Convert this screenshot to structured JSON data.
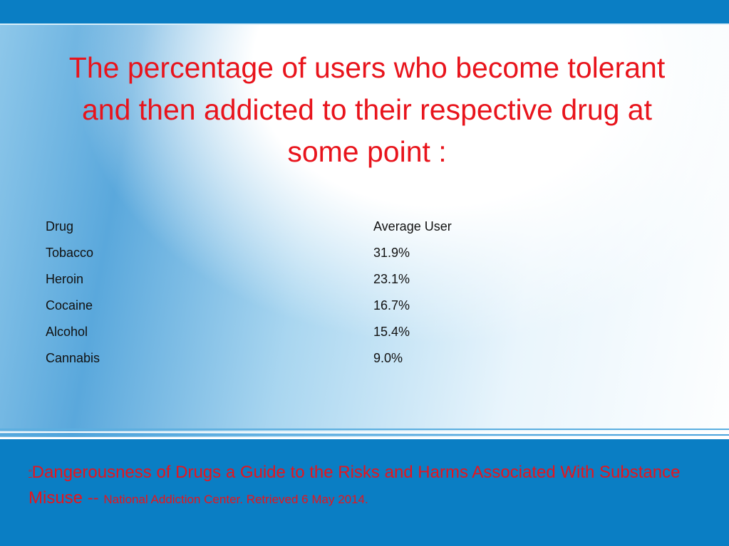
{
  "title": "The percentage of users who become tolerant and then addicted to their respective drug at some point :",
  "table": {
    "headers": [
      "Drug",
      "Average User"
    ],
    "rows": [
      [
        "Tobacco",
        "31.9%"
      ],
      [
        "Heroin",
        "23.1%"
      ],
      [
        "Cocaine",
        "16.7%"
      ],
      [
        "Alcohol",
        "15.4%"
      ],
      [
        "Cannabis",
        "9.0%"
      ]
    ]
  },
  "citation": {
    "open_quote": "“",
    "text": "Dangerousness of Drugs a Guide to the Risks and Harms Associated With Substance Misuse -- ",
    "source": "National Addiction Center. Retrieved 6 May 2014."
  },
  "colors": {
    "title": "#e8141c",
    "bar": "#0a7ec4",
    "citation": "#e8141c"
  }
}
